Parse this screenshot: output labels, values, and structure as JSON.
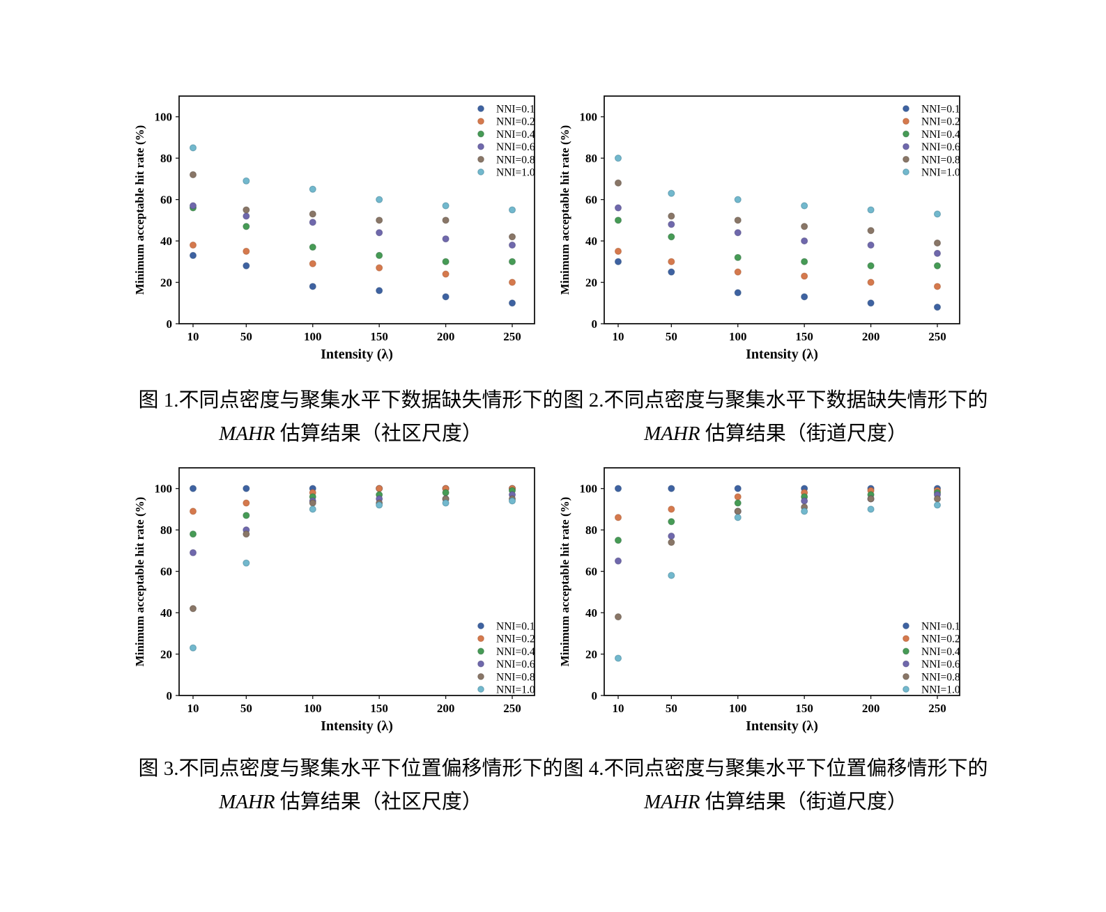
{
  "page": {
    "background": "#ffffff"
  },
  "captions": [
    {
      "line1": "图 1.不同点密度与聚集水平下数据缺失情形下的",
      "line2_italic": "MAHR",
      "line2_rest": " 估算结果（社区尺度）"
    },
    {
      "line1": "图 2.不同点密度与聚集水平下数据缺失情形下的",
      "line2_italic": "MAHR",
      "line2_rest": " 估算结果（街道尺度）"
    },
    {
      "line1": "图 3.不同点密度与聚集水平下位置偏移情形下的",
      "line2_italic": "MAHR",
      "line2_rest": " 估算结果（社区尺度）"
    },
    {
      "line1": "图 4.不同点密度与聚集水平下位置偏移情形下的",
      "line2_italic": "MAHR",
      "line2_rest": " 估算结果（街道尺度）"
    }
  ],
  "chart_style": {
    "axis_color": "#111111",
    "marker_radius": 4.5,
    "marker_edge_opacity": 0.55
  },
  "chart_data": [
    {
      "type": "scatter",
      "title": "",
      "xlabel": "Intensity (λ)",
      "ylabel": "Minimum acceptable hit rate (%)",
      "x": [
        10,
        50,
        100,
        150,
        200,
        250
      ],
      "xtick_labels": [
        "10",
        "50",
        "100",
        "150",
        "200",
        "250"
      ],
      "yticks": [
        0,
        20,
        40,
        60,
        80,
        100
      ],
      "ylim": [
        0,
        110
      ],
      "grid": false,
      "legend_position": "top-right",
      "series": [
        {
          "name": "NNI=0.1",
          "color": "#3e62a1",
          "edge": "#2a4a7b",
          "values": [
            33,
            28,
            18,
            16,
            13,
            10
          ]
        },
        {
          "name": "NNI=0.2",
          "color": "#d5794d",
          "edge": "#a9572e",
          "values": [
            38,
            35,
            29,
            27,
            24,
            20
          ]
        },
        {
          "name": "NNI=0.4",
          "color": "#469b55",
          "edge": "#2e6e3e",
          "values": [
            56,
            47,
            37,
            33,
            30,
            30
          ]
        },
        {
          "name": "NNI=0.6",
          "color": "#6f68ac",
          "edge": "#4f4880",
          "values": [
            57,
            52,
            49,
            44,
            41,
            38
          ]
        },
        {
          "name": "NNI=0.8",
          "color": "#897667",
          "edge": "#5e5044",
          "values": [
            72,
            55,
            53,
            50,
            50,
            42
          ]
        },
        {
          "name": "NNI=1.0",
          "color": "#72b8cd",
          "edge": "#3c7f96",
          "values": [
            85,
            69,
            65,
            60,
            57,
            55
          ]
        }
      ]
    },
    {
      "type": "scatter",
      "title": "",
      "xlabel": "Intensity (λ)",
      "ylabel": "Minimum acceptable hit rate (%)",
      "x": [
        10,
        50,
        100,
        150,
        200,
        250
      ],
      "xtick_labels": [
        "10",
        "50",
        "100",
        "150",
        "200",
        "250"
      ],
      "yticks": [
        0,
        20,
        40,
        60,
        80,
        100
      ],
      "ylim": [
        0,
        110
      ],
      "grid": false,
      "legend_position": "top-right",
      "series": [
        {
          "name": "NNI=0.1",
          "color": "#3e62a1",
          "edge": "#2a4a7b",
          "values": [
            30,
            25,
            15,
            13,
            10,
            8
          ]
        },
        {
          "name": "NNI=0.2",
          "color": "#d5794d",
          "edge": "#a9572e",
          "values": [
            35,
            30,
            25,
            23,
            20,
            18
          ]
        },
        {
          "name": "NNI=0.4",
          "color": "#469b55",
          "edge": "#2e6e3e",
          "values": [
            50,
            42,
            32,
            30,
            28,
            28
          ]
        },
        {
          "name": "NNI=0.6",
          "color": "#6f68ac",
          "edge": "#4f4880",
          "values": [
            56,
            48,
            44,
            40,
            38,
            34
          ]
        },
        {
          "name": "NNI=0.8",
          "color": "#897667",
          "edge": "#5e5044",
          "values": [
            68,
            52,
            50,
            47,
            45,
            39
          ]
        },
        {
          "name": "NNI=1.0",
          "color": "#72b8cd",
          "edge": "#3c7f96",
          "values": [
            80,
            63,
            60,
            57,
            55,
            53
          ]
        }
      ]
    },
    {
      "type": "scatter",
      "title": "",
      "xlabel": "Intensity (λ)",
      "ylabel": "Minimum acceptable hit rate (%)",
      "x": [
        10,
        50,
        100,
        150,
        200,
        250
      ],
      "xtick_labels": [
        "10",
        "50",
        "100",
        "150",
        "200",
        "250"
      ],
      "yticks": [
        0,
        20,
        40,
        60,
        80,
        100
      ],
      "ylim": [
        0,
        110
      ],
      "grid": false,
      "legend_position": "bottom-right",
      "series": [
        {
          "name": "NNI=0.1",
          "color": "#3e62a1",
          "edge": "#2a4a7b",
          "values": [
            100,
            100,
            100,
            100,
            100,
            100
          ]
        },
        {
          "name": "NNI=0.2",
          "color": "#d5794d",
          "edge": "#a9572e",
          "values": [
            89,
            93,
            98,
            100,
            100,
            100
          ]
        },
        {
          "name": "NNI=0.4",
          "color": "#469b55",
          "edge": "#2e6e3e",
          "values": [
            78,
            87,
            96,
            97,
            98,
            99
          ]
        },
        {
          "name": "NNI=0.6",
          "color": "#6f68ac",
          "edge": "#4f4880",
          "values": [
            69,
            80,
            94,
            95,
            95,
            97
          ]
        },
        {
          "name": "NNI=0.8",
          "color": "#897667",
          "edge": "#5e5044",
          "values": [
            42,
            78,
            93,
            93,
            95,
            95
          ]
        },
        {
          "name": "NNI=1.0",
          "color": "#72b8cd",
          "edge": "#3c7f96",
          "values": [
            23,
            64,
            90,
            92,
            93,
            94
          ]
        }
      ]
    },
    {
      "type": "scatter",
      "title": "",
      "xlabel": "Intensity (λ)",
      "ylabel": "Minimum acceptable hit rate (%)",
      "x": [
        10,
        50,
        100,
        150,
        200,
        250
      ],
      "xtick_labels": [
        "10",
        "50",
        "100",
        "150",
        "200",
        "250"
      ],
      "yticks": [
        0,
        20,
        40,
        60,
        80,
        100
      ],
      "ylim": [
        0,
        110
      ],
      "grid": false,
      "legend_position": "bottom-right",
      "series": [
        {
          "name": "NNI=0.1",
          "color": "#3e62a1",
          "edge": "#2a4a7b",
          "values": [
            100,
            100,
            100,
            100,
            100,
            100
          ]
        },
        {
          "name": "NNI=0.2",
          "color": "#d5794d",
          "edge": "#a9572e",
          "values": [
            86,
            90,
            96,
            98,
            99,
            99
          ]
        },
        {
          "name": "NNI=0.4",
          "color": "#469b55",
          "edge": "#2e6e3e",
          "values": [
            75,
            84,
            93,
            96,
            97,
            98
          ]
        },
        {
          "name": "NNI=0.6",
          "color": "#6f68ac",
          "edge": "#4f4880",
          "values": [
            65,
            77,
            89,
            94,
            95,
            97
          ]
        },
        {
          "name": "NNI=0.8",
          "color": "#897667",
          "edge": "#5e5044",
          "values": [
            38,
            74,
            89,
            91,
            95,
            95
          ]
        },
        {
          "name": "NNI=1.0",
          "color": "#72b8cd",
          "edge": "#3c7f96",
          "values": [
            18,
            58,
            86,
            89,
            90,
            92
          ]
        }
      ]
    }
  ]
}
